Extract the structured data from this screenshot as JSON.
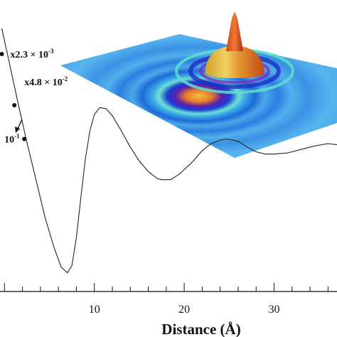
{
  "chart_data": {
    "type": "line",
    "xlabel": "Distance (Å)",
    "xlim": [
      -0.5,
      37
    ],
    "ylim": [
      -1.2,
      1.0
    ],
    "x_ticks": [
      10,
      20,
      30
    ],
    "grid": false,
    "series": [
      {
        "values": [
          [
            -0.3,
            1.0
          ],
          [
            0.5,
            0.72
          ],
          [
            1.5,
            0.36
          ],
          [
            2.5,
            0.02
          ],
          [
            3.5,
            -0.3
          ],
          [
            4.5,
            -0.62
          ],
          [
            5.5,
            -0.88
          ],
          [
            6.3,
            -1.05
          ],
          [
            7.0,
            -1.1
          ],
          [
            7.5,
            -1.04
          ],
          [
            8.0,
            -0.8
          ],
          [
            8.5,
            -0.45
          ],
          [
            9.0,
            -0.12
          ],
          [
            9.5,
            0.12
          ],
          [
            10.0,
            0.26
          ],
          [
            10.6,
            0.32
          ],
          [
            11.3,
            0.31
          ],
          [
            12.0,
            0.25
          ],
          [
            13.0,
            0.12
          ],
          [
            14.0,
            -0.02
          ],
          [
            15.0,
            -0.14
          ],
          [
            16.0,
            -0.23
          ],
          [
            17.0,
            -0.29
          ],
          [
            17.5,
            -0.3
          ],
          [
            18.5,
            -0.3
          ],
          [
            19.5,
            -0.25
          ],
          [
            21.0,
            -0.14
          ],
          [
            22.0,
            -0.05
          ],
          [
            23.0,
            0.01
          ],
          [
            24.0,
            0.04
          ],
          [
            24.8,
            0.05
          ],
          [
            26.0,
            0.03
          ],
          [
            27.0,
            -0.02
          ],
          [
            28.0,
            -0.06
          ],
          [
            29.0,
            -0.08
          ],
          [
            30.0,
            -0.08
          ],
          [
            31.5,
            -0.07
          ],
          [
            33.0,
            -0.04
          ],
          [
            34.5,
            -0.01
          ],
          [
            36.0,
            0.01
          ],
          [
            37.0,
            0.0
          ]
        ]
      }
    ],
    "markers": [
      {
        "x": -0.3,
        "y": 0.78,
        "label": "x2.3 × 10",
        "exponent": "-3"
      },
      {
        "x": 1.1,
        "y": 0.34,
        "label": "x4.8 × 10",
        "exponent": "-2"
      },
      {
        "x": 2.2,
        "y": 0.05,
        "label": "10",
        "exponent": "-1"
      }
    ]
  },
  "inset": {
    "description_colors": [
      "#1a3fd6",
      "#3aa9e8",
      "#5fd0a0",
      "#d8e03a",
      "#e87a2a",
      "#c42020"
    ]
  }
}
